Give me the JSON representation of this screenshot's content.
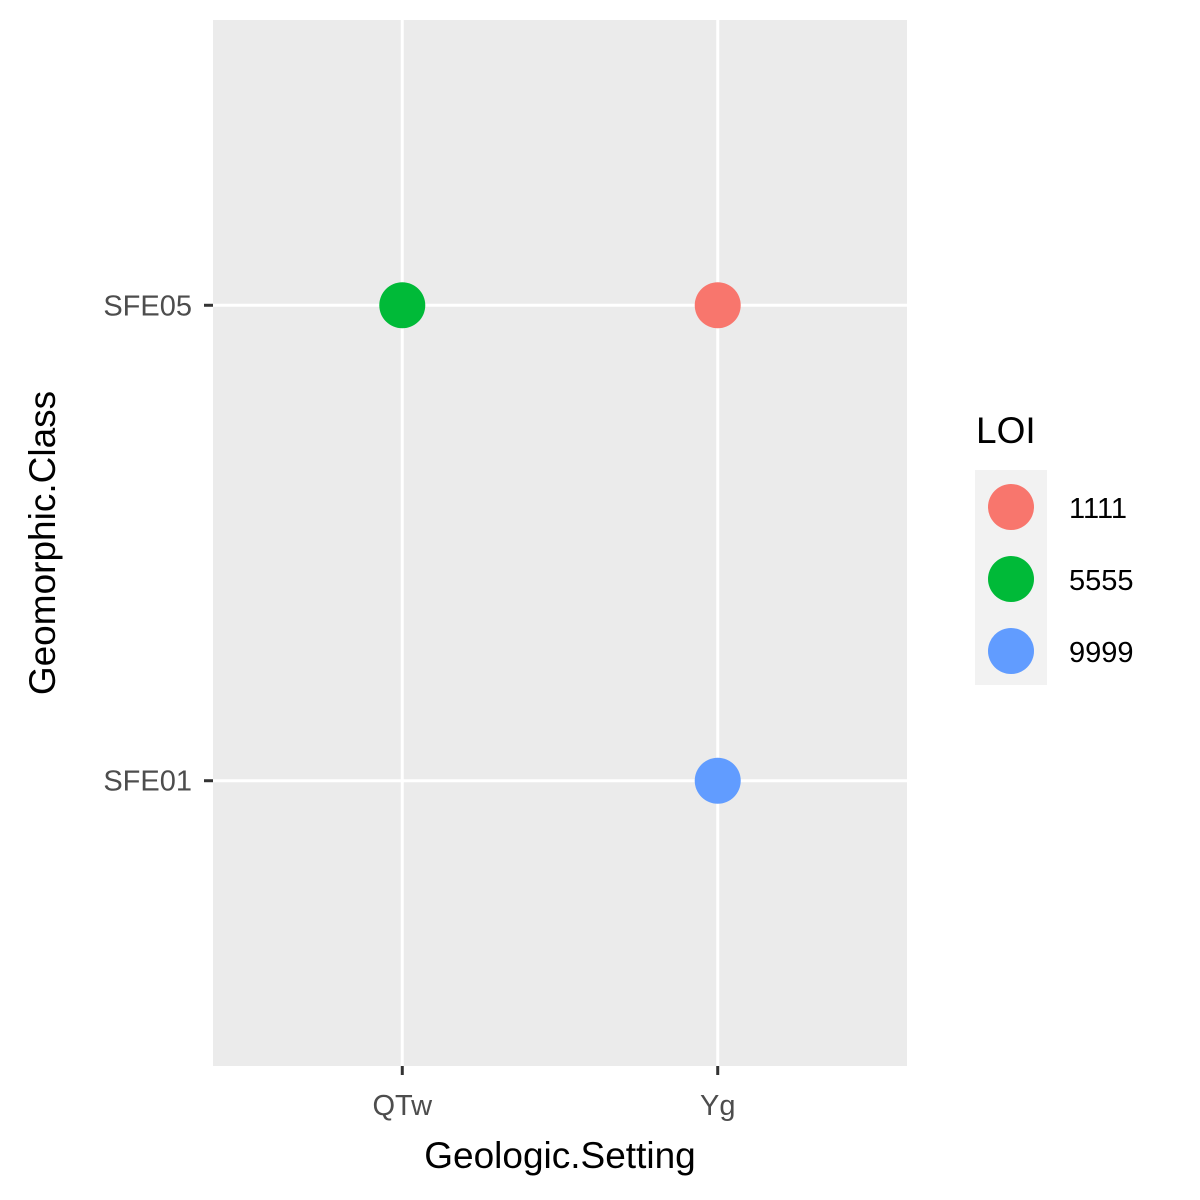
{
  "chart_data": {
    "type": "scatter",
    "xlabel": "Geologic.Setting",
    "ylabel": "Geomorphic.Class",
    "x_categories": [
      "QTw",
      "Yg"
    ],
    "y_categories": [
      "SFE01",
      "SFE05"
    ],
    "grid": true,
    "legend": {
      "title": "LOI",
      "placement": "right",
      "entries": [
        {
          "label": "1111",
          "color": "#F8766D"
        },
        {
          "label": "5555",
          "color": "#00BA38"
        },
        {
          "label": "9999",
          "color": "#619CFF"
        }
      ]
    },
    "points": [
      {
        "x": "QTw",
        "y": "SFE05",
        "group": "5555"
      },
      {
        "x": "Yg",
        "y": "SFE05",
        "group": "1111"
      },
      {
        "x": "Yg",
        "y": "SFE01",
        "group": "9999"
      }
    ]
  },
  "colors": {
    "panel_background": "#EBEBEB",
    "grid_line": "#FFFFFF",
    "tick_mark": "#333333"
  }
}
